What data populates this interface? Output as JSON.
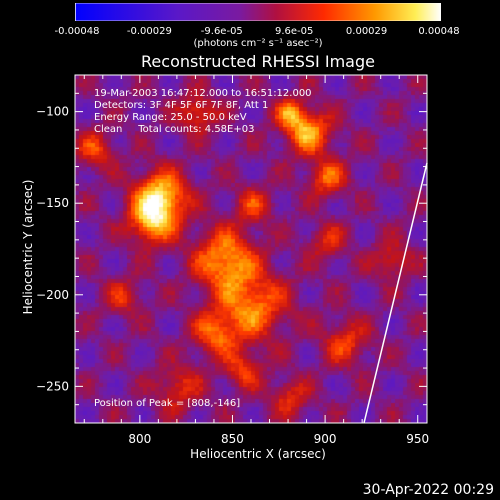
{
  "chart_data": {
    "type": "heatmap",
    "title": "Reconstructed RHESSI Image",
    "xlabel": "Heliocentric X (arcsec)",
    "ylabel": "Heliocentric Y (arcsec)",
    "xlim": [
      765,
      955
    ],
    "ylim": [
      -270,
      -80
    ],
    "xticks": [
      800,
      850,
      900,
      950
    ],
    "yticks": [
      -100,
      -150,
      -200,
      -250
    ],
    "colorbar": {
      "units": "(photons cm⁻² s⁻¹ asec⁻²)",
      "tick_labels": [
        "-0.00048",
        "-0.00029",
        "-9.6e-05",
        "9.6e-05",
        "0.00029",
        "0.00048"
      ],
      "range": [
        -0.00048,
        0.00048
      ]
    },
    "annotations": [
      "19-Mar-2003 16:47:12.000 to 16:51:12.000",
      "Detectors: 3F 4F 5F 6F 7F 8F, Att 1",
      "Energy Range: 25.0 - 50.0 keV",
      "Clean     Total counts: 4.58E+03"
    ],
    "peak_label": "Position of Peak = [808,-146]",
    "peak": [
      808,
      -146
    ],
    "limb_line": [
      [
        921,
        -270
      ],
      [
        955,
        -128
      ]
    ]
  },
  "footer": {
    "date": "30-Apr-2022 00:29"
  },
  "colors": {
    "background": "#000000",
    "axes": "#ffffff"
  }
}
